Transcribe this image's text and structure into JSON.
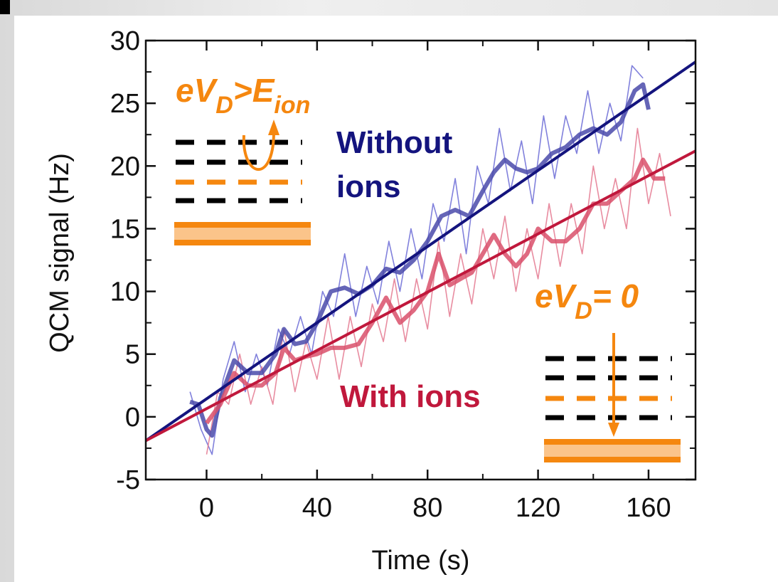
{
  "chart_data": {
    "type": "line",
    "xlabel": "Time (s)",
    "ylabel": "QCM signal (Hz)",
    "xlim": [
      -22,
      177
    ],
    "ylim": [
      -5,
      30
    ],
    "xticks": [
      0,
      40,
      80,
      120,
      160
    ],
    "yticks": [
      -5,
      0,
      5,
      10,
      15,
      20,
      25,
      30
    ],
    "annotations": [
      {
        "parts": [
          "eV",
          "D",
          ">E",
          "ion"
        ],
        "color": "#f5870f"
      },
      {
        "parts": [
          "eV",
          "D",
          "= 0"
        ],
        "color": "#f5870f"
      }
    ],
    "series": [
      {
        "style": "raw",
        "color": "#6b6bd6",
        "x": [
          -6,
          -2,
          2,
          6,
          10,
          14,
          18,
          22,
          26,
          30,
          34,
          38,
          42,
          46,
          50,
          54,
          58,
          62,
          66,
          70,
          74,
          78,
          82,
          86,
          90,
          94,
          98,
          102,
          106,
          110,
          114,
          118,
          122,
          126,
          130,
          134,
          138,
          142,
          146,
          150,
          154,
          158
        ],
        "values": [
          2,
          -1,
          -3,
          3,
          6,
          2,
          5,
          2.5,
          7,
          5,
          8,
          5,
          10,
          8,
          13,
          8,
          12,
          9,
          14,
          10,
          15,
          11,
          17,
          14,
          19,
          13,
          20,
          17,
          23,
          18,
          22,
          17,
          24,
          19,
          24,
          21,
          26,
          21,
          25,
          22,
          28,
          27
        ]
      },
      {
        "style": "raw",
        "color": "#e4788f",
        "x": [
          0,
          4,
          8,
          12,
          16,
          20,
          24,
          28,
          32,
          36,
          40,
          44,
          48,
          52,
          56,
          60,
          64,
          68,
          72,
          76,
          80,
          84,
          88,
          92,
          96,
          100,
          104,
          108,
          112,
          116,
          120,
          124,
          128,
          132,
          136,
          140,
          144,
          148,
          152,
          156,
          160,
          164,
          168
        ],
        "values": [
          -3,
          2,
          1,
          5,
          1,
          4,
          1,
          7,
          2,
          6,
          3,
          8,
          3,
          8,
          4,
          9,
          6,
          11,
          6,
          11,
          7,
          14,
          8,
          13,
          9,
          15,
          11,
          16,
          10,
          15,
          11,
          17,
          12,
          17,
          13,
          20,
          15,
          19,
          15,
          23,
          17,
          21,
          16
        ]
      },
      {
        "style": "smoothed",
        "color": "#4a4aaa",
        "x": [
          -6,
          -3,
          0,
          2,
          5,
          10,
          15,
          20,
          25,
          28,
          32,
          36,
          40,
          45,
          50,
          55,
          60,
          65,
          70,
          75,
          80,
          85,
          90,
          95,
          100,
          104,
          108,
          112,
          116,
          120,
          125,
          130,
          135,
          140,
          145,
          150,
          155,
          158,
          160
        ],
        "values": [
          1.2,
          1,
          -1,
          -1.5,
          1.5,
          4.5,
          3.5,
          3.5,
          5,
          7,
          5.8,
          6,
          7.5,
          10,
          10.3,
          9.8,
          10.5,
          11.8,
          11.5,
          12.5,
          14,
          16,
          16.5,
          16,
          18,
          19.5,
          20.5,
          19.8,
          19.5,
          19.8,
          21,
          21.5,
          22.5,
          23,
          22.5,
          23.5,
          26,
          26.5,
          24.5
        ]
      },
      {
        "style": "smoothed",
        "color": "#d9506b",
        "x": [
          0,
          5,
          10,
          15,
          20,
          25,
          28,
          32,
          36,
          40,
          45,
          50,
          55,
          60,
          65,
          70,
          75,
          80,
          84,
          88,
          92,
          96,
          100,
          104,
          108,
          112,
          116,
          120,
          125,
          130,
          135,
          140,
          145,
          150,
          155,
          158,
          162,
          166
        ],
        "values": [
          -0.5,
          1,
          3.5,
          2.5,
          2.5,
          3.5,
          5.5,
          4.5,
          4.8,
          5,
          5.5,
          5.5,
          5.8,
          7.5,
          9.5,
          7.5,
          8.5,
          10,
          13,
          10.5,
          11,
          11.5,
          13,
          14.5,
          13,
          12,
          13,
          15,
          14,
          14,
          15,
          17,
          17,
          18,
          19,
          20.5,
          19,
          19
        ]
      },
      {
        "name": "Without ions",
        "style": "fit",
        "color": "#14147e",
        "x": [
          -22,
          177
        ],
        "values": [
          -1.9,
          28.3
        ]
      },
      {
        "name": "With ions",
        "style": "fit",
        "color": "#c0183c",
        "x": [
          -22,
          177
        ],
        "values": [
          -1.9,
          21.2
        ]
      }
    ]
  }
}
